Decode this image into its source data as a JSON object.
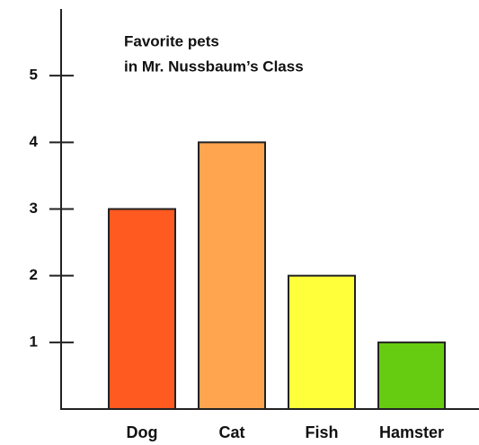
{
  "chart_data": {
    "type": "bar",
    "title": [
      "Favorite pets",
      "in Mr. Nussbaum’s Class"
    ],
    "categories": [
      "Dog",
      "Cat",
      "Fish",
      "Hamster"
    ],
    "values": [
      3,
      4,
      2,
      1
    ],
    "colors": [
      "#ff5a1f",
      "#ffa54f",
      "#ffff3a",
      "#66cc11"
    ],
    "ylim": [
      0,
      6
    ],
    "yticks": [
      1,
      2,
      3,
      4,
      5
    ],
    "grid": false
  }
}
